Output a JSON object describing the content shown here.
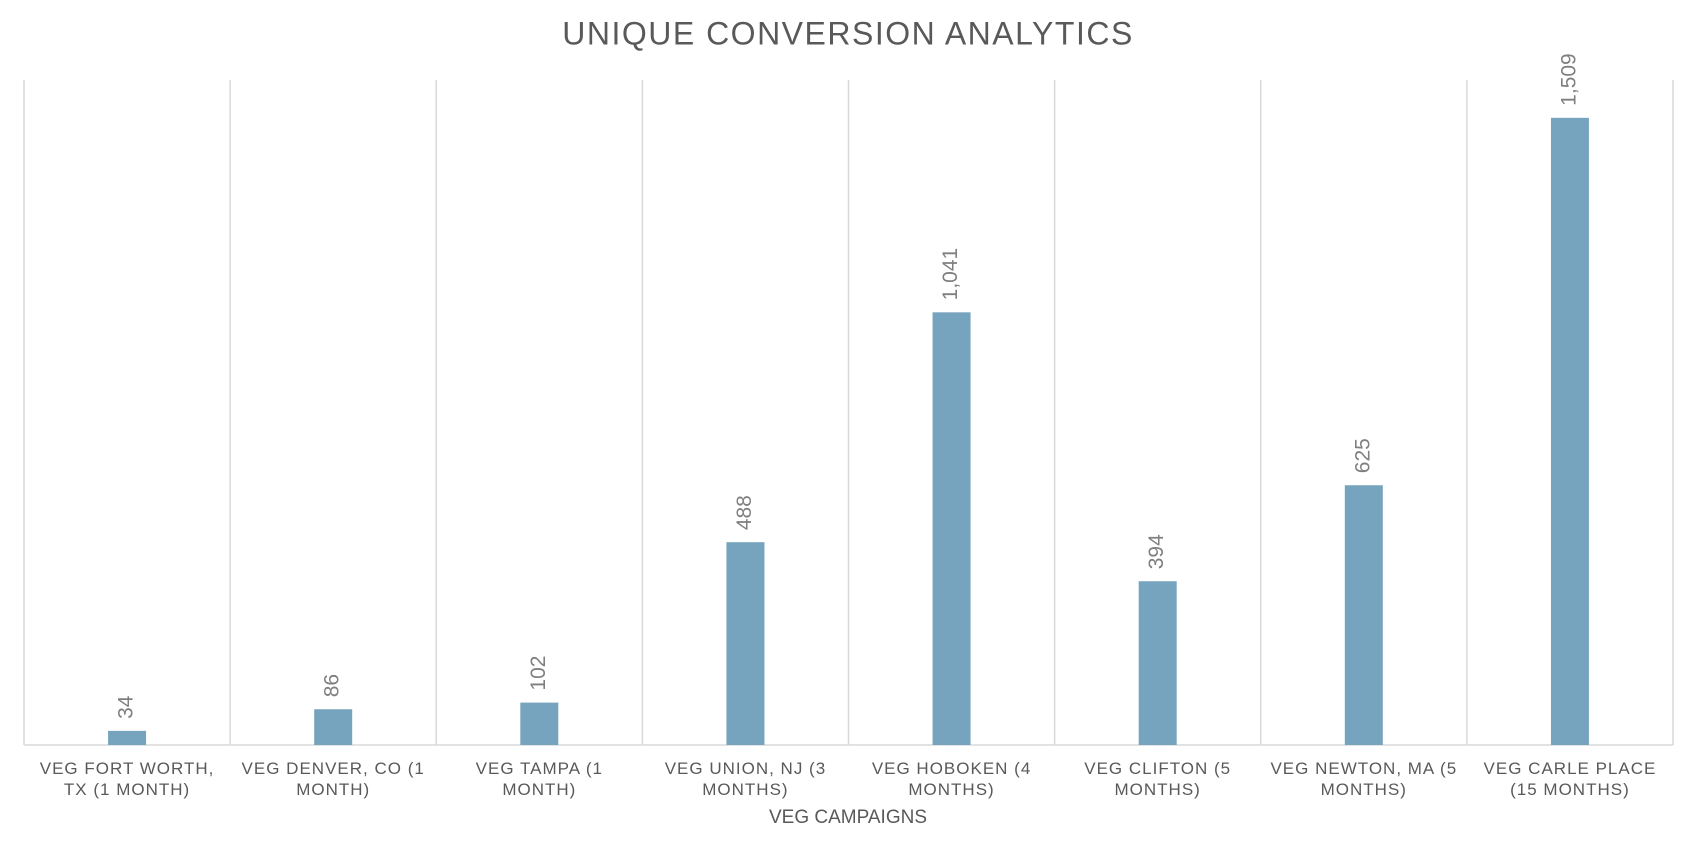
{
  "chart_data": {
    "type": "bar",
    "title": "UNIQUE CONVERSION ANALYTICS",
    "x_label": "VEG CAMPAIGNS",
    "categories": [
      "VEG FORT WORTH, TX (1 MONTH)",
      "VEG DENVER, CO (1 MONTH)",
      "VEG TAMPA (1 MONTH)",
      "VEG UNION, NJ (3 MONTHS)",
      "VEG HOBOKEN (4 MONTHS)",
      "VEG CLIFTON (5 MONTHS)",
      "VEG NEWTON, MA (5 MONTHS)",
      "VEG CARLE PLACE (15 MONTHS)"
    ],
    "values": [
      34,
      86,
      102,
      488,
      1041,
      394,
      625,
      1509
    ],
    "value_labels": [
      "34",
      "86",
      "102",
      "488",
      "1,041",
      "394",
      "625",
      "1,509"
    ],
    "color": "#76a4be",
    "ylim": [
      0,
      1600
    ]
  }
}
